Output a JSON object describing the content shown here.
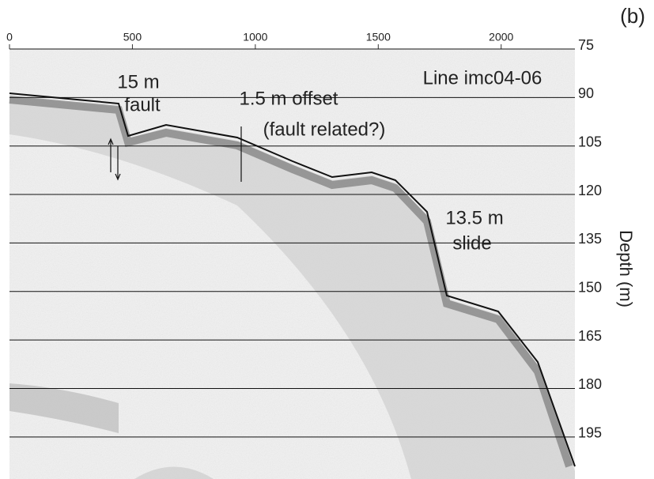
{
  "chart_data": {
    "type": "seismic-profile",
    "figure_label": "(b)",
    "ylabel": "Depth (m)",
    "line_name": "Line imc04-06",
    "annotations": [
      "15 m",
      "fault",
      "1.5 m offset",
      "(fault related?)",
      "13.5 m",
      "slide"
    ],
    "xlim": [
      0,
      2300
    ],
    "xticks": [
      0,
      500,
      1000,
      1500,
      2000
    ],
    "ylim": [
      75,
      208
    ],
    "yticks": [
      75,
      90,
      105,
      120,
      135,
      150,
      165,
      180,
      195
    ],
    "grid": true
  }
}
